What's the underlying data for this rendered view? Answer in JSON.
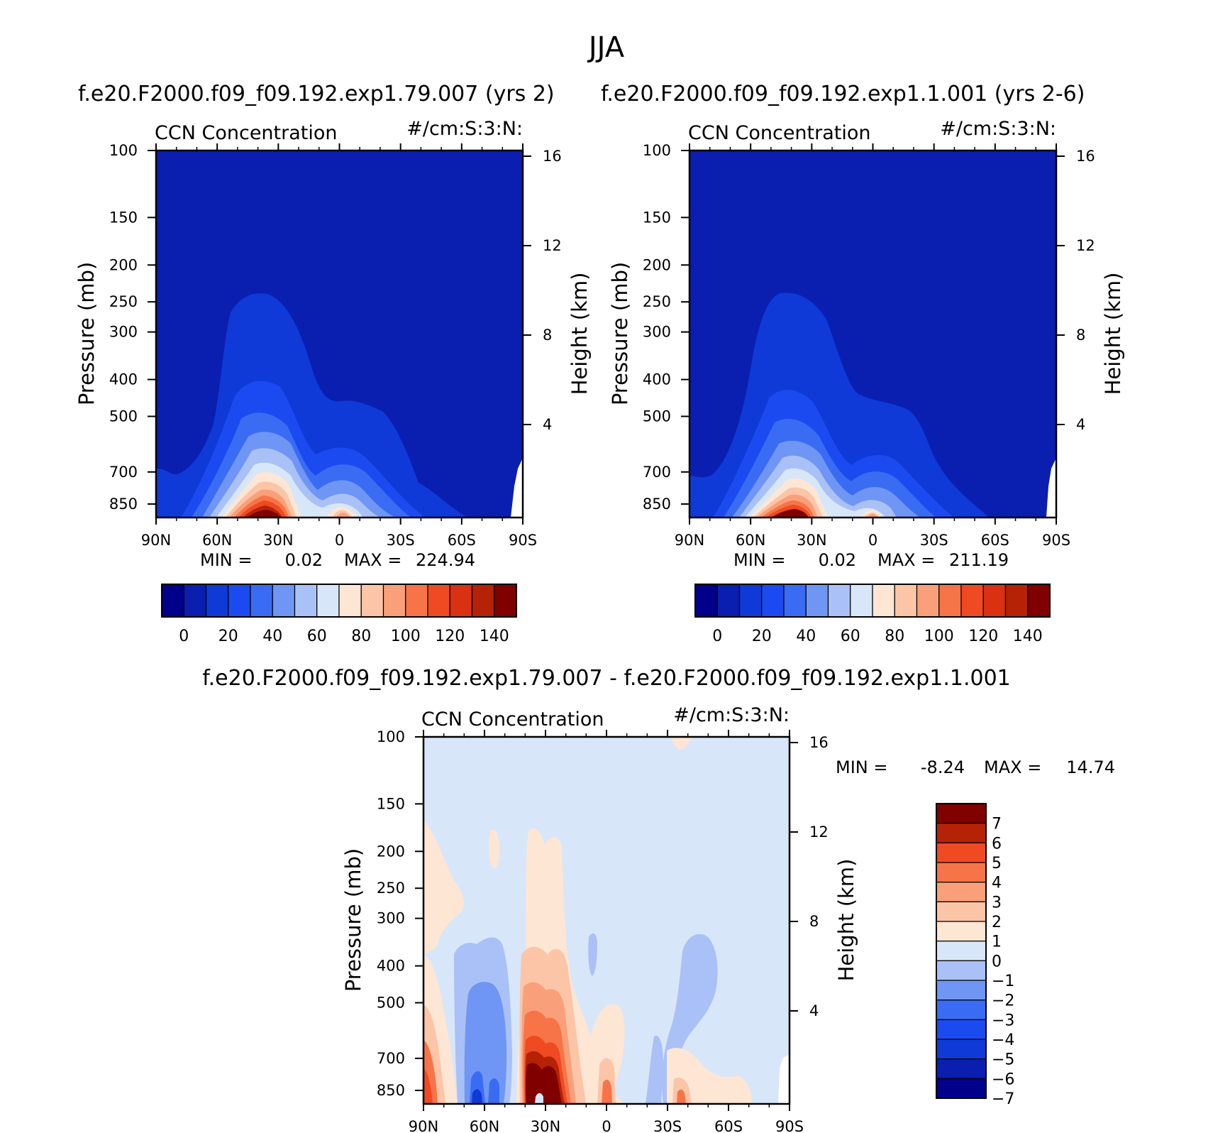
{
  "main_title": "JJA",
  "top_titles": {
    "left": "f.e20.F2000.f09_f09.192.exp1.79.007 (yrs 2)",
    "right": "f.e20.F2000.f09_f09.192.exp1.1.001 (yrs 2-6)"
  },
  "bottom_title": "f.e20.F2000.f09_f09.192.exp1.79.007 - f.e20.F2000.f09_f09.192.exp1.1.001",
  "colors": {
    "abs_palette": [
      "#00008b",
      "#0a1fb0",
      "#0f3ad8",
      "#1b4bf0",
      "#3a6cf3",
      "#6f96f4",
      "#a9c1f6",
      "#d8e6f9",
      "#fde6d4",
      "#fcc5a8",
      "#f9a07a",
      "#f77448",
      "#ef4a22",
      "#d93112",
      "#b52206",
      "#800000"
    ],
    "diff_palette": [
      "#00008b",
      "#0a1fb0",
      "#0f3ad8",
      "#1b4bf0",
      "#3a6cf3",
      "#6f96f4",
      "#a9c1f6",
      "#d8e6f9",
      "#fde6d4",
      "#fcc5a8",
      "#f9a07a",
      "#f77448",
      "#ef4a22",
      "#b52206",
      "#800000"
    ]
  },
  "chart_data": [
    {
      "type": "heatmap",
      "panel": "left",
      "title_left": "CCN Concentration",
      "title_right": "#/cm:S:3:N:",
      "ylabel": "Pressure (mb)",
      "ylabel_right": "Height (km)",
      "x_ticks": [
        "90N",
        "60N",
        "30N",
        "0",
        "30S",
        "60S",
        "90S"
      ],
      "y_ticks": [
        "100",
        "150",
        "200",
        "250",
        "300",
        "400",
        "500",
        "700",
        "850"
      ],
      "y_ticks_values": [
        100,
        150,
        200,
        250,
        300,
        400,
        500,
        700,
        850
      ],
      "y_right_ticks": [
        "4",
        "8",
        "12",
        "16"
      ],
      "y_right_values": [
        4,
        8,
        12,
        16
      ],
      "stats": {
        "min_label": "MIN =",
        "min_value": "0.02",
        "max_label": "MAX =",
        "max_value": "224.94"
      },
      "colorbar_labels": [
        "0",
        "20",
        "40",
        "60",
        "80",
        "100",
        "120",
        "140"
      ],
      "levels": [
        -10,
        0,
        10,
        20,
        30,
        40,
        50,
        60,
        70,
        80,
        90,
        100,
        110,
        120,
        130,
        140
      ]
    },
    {
      "type": "heatmap",
      "panel": "right",
      "title_left": "CCN Concentration",
      "title_right": "#/cm:S:3:N:",
      "ylabel": "Pressure (mb)",
      "ylabel_right": "Height (km)",
      "x_ticks": [
        "90N",
        "60N",
        "30N",
        "0",
        "30S",
        "60S",
        "90S"
      ],
      "y_ticks": [
        "100",
        "150",
        "200",
        "250",
        "300",
        "400",
        "500",
        "700",
        "850"
      ],
      "y_ticks_values": [
        100,
        150,
        200,
        250,
        300,
        400,
        500,
        700,
        850
      ],
      "y_right_ticks": [
        "4",
        "8",
        "12",
        "16"
      ],
      "y_right_values": [
        4,
        8,
        12,
        16
      ],
      "stats": {
        "min_label": "MIN =",
        "min_value": "0.02",
        "max_label": "MAX =",
        "max_value": "211.19"
      },
      "colorbar_labels": [
        "0",
        "20",
        "40",
        "60",
        "80",
        "100",
        "120",
        "140"
      ],
      "levels": [
        -10,
        0,
        10,
        20,
        30,
        40,
        50,
        60,
        70,
        80,
        90,
        100,
        110,
        120,
        130,
        140
      ]
    },
    {
      "type": "heatmap",
      "panel": "difference",
      "title_left": "CCN Concentration",
      "title_right": "#/cm:S:3:N:",
      "ylabel": "Pressure (mb)",
      "ylabel_right": "Height (km)",
      "x_ticks": [
        "90N",
        "60N",
        "30N",
        "0",
        "30S",
        "60S",
        "90S"
      ],
      "y_ticks": [
        "100",
        "150",
        "200",
        "250",
        "300",
        "400",
        "500",
        "700",
        "850"
      ],
      "y_ticks_values": [
        100,
        150,
        200,
        250,
        300,
        400,
        500,
        700,
        850
      ],
      "y_right_ticks": [
        "4",
        "8",
        "12",
        "16"
      ],
      "y_right_values": [
        4,
        8,
        12,
        16
      ],
      "stats": {
        "min_label": "MIN =",
        "min_value": "-8.24",
        "max_label": "MAX =",
        "max_value": "14.74"
      },
      "colorbar_labels": [
        "7",
        "6",
        "5",
        "4",
        "3",
        "2",
        "1",
        "0",
        "-1",
        "-2",
        "-3",
        "-4",
        "-5",
        "-6",
        "-7"
      ]
    }
  ]
}
